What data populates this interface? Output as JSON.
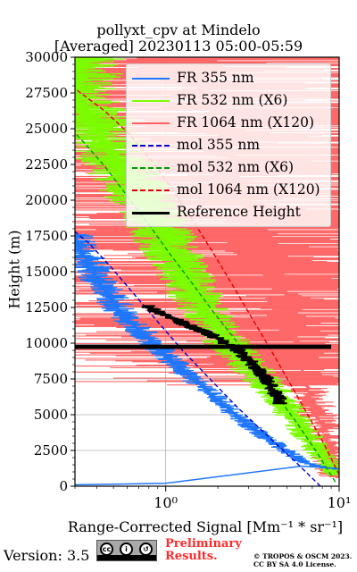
{
  "title_line1": "pollyxt_cpv at Mindelo",
  "title_line2": "[Averaged] 20230113 05:00-05:59",
  "footer": {
    "version": "Version: 3.5",
    "cc_badge_text": "BY  SA",
    "preliminary_line1": "Preliminary",
    "preliminary_line2": "Results.",
    "copyright_line1": "© TROPOS & OSCM 2023.",
    "copyright_line2": "CC BY SA 4.0 License."
  },
  "colors": {
    "fr355": "#1f77ff",
    "fr532": "#7cfc00",
    "fr1064": "#ff6060",
    "mol355": "#0000cc",
    "mol532": "#009900",
    "mol1064": "#dd0000",
    "ref": "#000000"
  },
  "chart_data": {
    "type": "line",
    "xscale": "log",
    "xlabel": "Range-Corrected Signal [Mm⁻¹ * sr⁻¹]",
    "ylabel": "Height (m)",
    "xlim": [
      0.3,
      10
    ],
    "ylim": [
      0,
      30000
    ],
    "x_tick_labels": [
      "10⁰",
      "10¹"
    ],
    "x_ticks": [
      1,
      10
    ],
    "y_ticks": [
      0,
      2500,
      5000,
      7500,
      10000,
      12500,
      15000,
      17500,
      20000,
      22500,
      25000,
      27500,
      30000
    ],
    "grid": true,
    "legend_position": "upper right",
    "legend": [
      "FR 355 nm",
      "FR 532 nm (X6)",
      "FR 1064 nm (X120)",
      "mol 355 nm",
      "mol 532 nm (X6)",
      "mol 1064 nm (X120)",
      "Reference Height"
    ],
    "series": [
      {
        "name": "FR 355 nm",
        "color": "#1f77ff",
        "style": "solid",
        "points": [
          [
            10,
            1200
          ],
          [
            8,
            1300
          ],
          [
            6,
            1800
          ],
          [
            4.5,
            2800
          ],
          [
            3.2,
            4000
          ],
          [
            2.4,
            5200
          ],
          [
            1.8,
            6500
          ],
          [
            1.35,
            7800
          ],
          [
            1.0,
            9200
          ],
          [
            0.75,
            10600
          ],
          [
            0.55,
            12200
          ],
          [
            0.42,
            14200
          ],
          [
            0.33,
            16300
          ],
          [
            0.3,
            17200
          ]
        ]
      },
      {
        "name": "FR 532 nm (X6)",
        "color": "#7cfc00",
        "style": "solid",
        "points": [
          [
            9.5,
            800
          ],
          [
            8.5,
            1600
          ],
          [
            7.5,
            2500
          ],
          [
            6.5,
            3600
          ],
          [
            5.5,
            4800
          ],
          [
            4.6,
            6000
          ],
          [
            3.6,
            7400
          ],
          [
            2.9,
            8600
          ],
          [
            2.3,
            9900
          ],
          [
            1.9,
            11300
          ],
          [
            1.55,
            12900
          ],
          [
            1.3,
            14600
          ],
          [
            1.1,
            16200
          ],
          [
            0.95,
            17800
          ],
          [
            0.8,
            19400
          ],
          [
            0.65,
            21000
          ],
          [
            0.52,
            22800
          ],
          [
            0.42,
            24600
          ],
          [
            0.33,
            26400
          ],
          [
            0.3,
            27200
          ]
        ]
      },
      {
        "name": "FR 1064 nm (X120)",
        "color": "#ff6060",
        "style": "noisy",
        "points": [
          [
            9.5,
            1400
          ],
          [
            8,
            4000
          ],
          [
            6.5,
            7000
          ],
          [
            5.5,
            10000
          ],
          [
            5,
            13000
          ],
          [
            4,
            16000
          ],
          [
            3.2,
            19000
          ],
          [
            2.6,
            22000
          ],
          [
            2,
            25000
          ],
          [
            1.6,
            28000
          ],
          [
            1.5,
            30000
          ]
        ]
      },
      {
        "name": "mol 355 nm",
        "color": "#0000cc",
        "style": "dashed",
        "points": [
          [
            7.8,
            0
          ],
          [
            5.5,
            1800
          ],
          [
            3.8,
            3600
          ],
          [
            2.6,
            5500
          ],
          [
            1.8,
            7500
          ],
          [
            1.25,
            9500
          ],
          [
            0.9,
            11500
          ],
          [
            0.65,
            13500
          ],
          [
            0.47,
            15500
          ],
          [
            0.36,
            17000
          ],
          [
            0.3,
            17800
          ]
        ]
      },
      {
        "name": "mol 532 nm (X6)",
        "color": "#009900",
        "style": "dashed",
        "points": [
          [
            9.5,
            300
          ],
          [
            7.5,
            2300
          ],
          [
            5.8,
            4300
          ],
          [
            4.4,
            6300
          ],
          [
            3.3,
            8300
          ],
          [
            2.5,
            10300
          ],
          [
            1.85,
            12300
          ],
          [
            1.4,
            14300
          ],
          [
            1.05,
            16300
          ],
          [
            0.8,
            18300
          ],
          [
            0.6,
            20300
          ],
          [
            0.45,
            22300
          ],
          [
            0.34,
            24000
          ],
          [
            0.3,
            24700
          ]
        ]
      },
      {
        "name": "mol 1064 nm (X120)",
        "color": "#dd0000",
        "style": "dashed",
        "points": [
          [
            10,
            800
          ],
          [
            8.3,
            2800
          ],
          [
            6.6,
            5000
          ],
          [
            5.2,
            7200
          ],
          [
            4.1,
            9400
          ],
          [
            3.2,
            11600
          ],
          [
            2.5,
            13800
          ],
          [
            1.95,
            16000
          ],
          [
            1.5,
            18200
          ],
          [
            1.15,
            20400
          ],
          [
            0.85,
            22600
          ],
          [
            0.62,
            24600
          ],
          [
            0.45,
            26200
          ],
          [
            0.3,
            27800
          ]
        ]
      },
      {
        "name": "Reference Height",
        "color": "#000000",
        "style": "solid",
        "points": [
          [
            0.8,
            12500
          ],
          [
            1.2,
            11500
          ],
          [
            1.9,
            10500
          ],
          [
            2.6,
            9500
          ],
          [
            3.2,
            8500
          ],
          [
            3.8,
            7500
          ],
          [
            4.3,
            6500
          ],
          [
            4.6,
            5800
          ]
        ]
      }
    ],
    "reference_band": [
      9600,
      9900
    ]
  }
}
